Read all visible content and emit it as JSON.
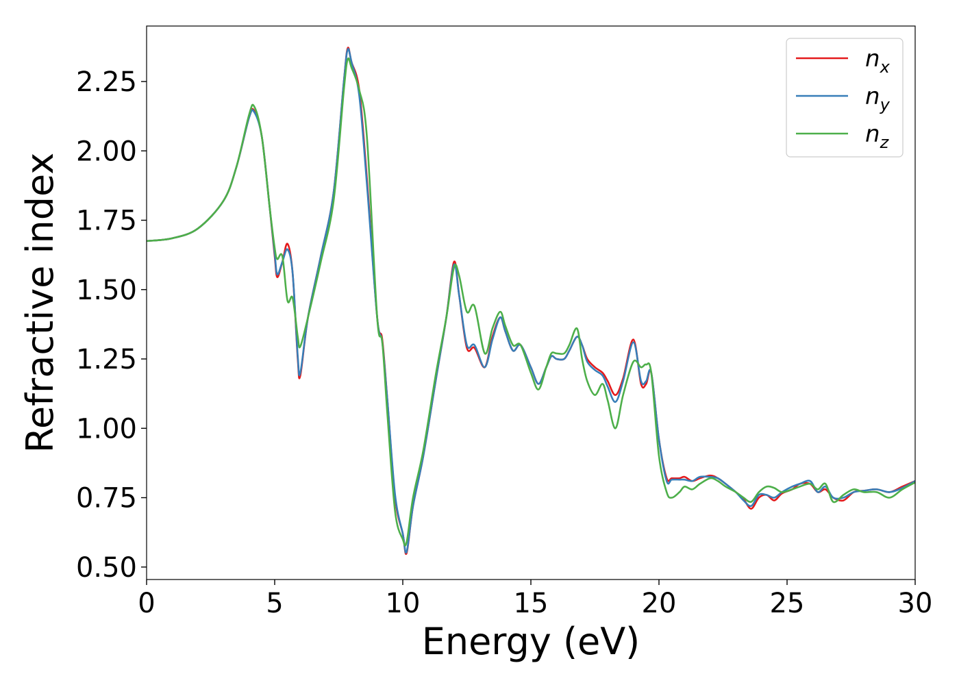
{
  "chart_data": {
    "type": "line",
    "xlabel": "Energy (eV)",
    "ylabel": "Refractive index",
    "xlim": [
      0,
      30
    ],
    "ylim": [
      0.455,
      2.45
    ],
    "xticks": [
      0,
      5,
      10,
      15,
      20,
      25,
      30
    ],
    "yticks": [
      0.5,
      0.75,
      1.0,
      1.25,
      1.5,
      1.75,
      2.0,
      2.25
    ],
    "xtick_labels": [
      "0",
      "5",
      "10",
      "15",
      "20",
      "25",
      "30"
    ],
    "ytick_labels": [
      "0.50",
      "0.75",
      "1.00",
      "1.25",
      "1.50",
      "1.75",
      "2.00",
      "2.25"
    ],
    "grid": false,
    "legend_position": "top-right",
    "series": [
      {
        "name": "n_x",
        "label_main": "n",
        "label_sub": "x",
        "color": "#e41a1c",
        "x": [
          0,
          1,
          2,
          3,
          3.5,
          4,
          4.2,
          4.5,
          4.8,
          5,
          5.1,
          5.3,
          5.5,
          5.7,
          5.9,
          6,
          6.3,
          6.8,
          7.3,
          7.7,
          7.85,
          8,
          8.3,
          8.6,
          9,
          9.2,
          9.4,
          9.7,
          10,
          10.15,
          10.4,
          10.8,
          11.3,
          11.7,
          12,
          12.2,
          12.5,
          12.8,
          13.2,
          13.5,
          13.8,
          14,
          14.3,
          14.6,
          15,
          15.3,
          15.6,
          15.8,
          16,
          16.3,
          16.5,
          16.8,
          17,
          17.2,
          17.5,
          17.8,
          18,
          18.3,
          18.6,
          19,
          19.3,
          19.5,
          19.7,
          20,
          20.3,
          20.5,
          20.8,
          21,
          21.3,
          21.6,
          22,
          22.3,
          22.6,
          23,
          23.3,
          23.6,
          23.9,
          24.2,
          24.5,
          24.8,
          25.2,
          25.5,
          25.9,
          26.2,
          26.5,
          26.8,
          27.2,
          27.6,
          28,
          28.5,
          29,
          29.5,
          30
        ],
        "y": [
          1.675,
          1.685,
          1.72,
          1.82,
          1.94,
          2.12,
          2.145,
          2.05,
          1.8,
          1.62,
          1.545,
          1.6,
          1.665,
          1.56,
          1.25,
          1.19,
          1.4,
          1.62,
          1.85,
          2.25,
          2.37,
          2.32,
          2.22,
          1.9,
          1.4,
          1.32,
          1.1,
          0.75,
          0.62,
          0.55,
          0.72,
          0.9,
          1.18,
          1.4,
          1.6,
          1.48,
          1.29,
          1.29,
          1.22,
          1.33,
          1.4,
          1.35,
          1.28,
          1.3,
          1.22,
          1.16,
          1.22,
          1.26,
          1.25,
          1.25,
          1.28,
          1.33,
          1.3,
          1.25,
          1.22,
          1.2,
          1.17,
          1.12,
          1.18,
          1.32,
          1.16,
          1.16,
          1.2,
          0.96,
          0.82,
          0.82,
          0.82,
          0.825,
          0.81,
          0.82,
          0.83,
          0.82,
          0.8,
          0.77,
          0.745,
          0.71,
          0.75,
          0.76,
          0.74,
          0.765,
          0.78,
          0.8,
          0.8,
          0.77,
          0.78,
          0.75,
          0.74,
          0.77,
          0.775,
          0.78,
          0.77,
          0.79,
          0.81
        ]
      },
      {
        "name": "n_y",
        "label_main": "n",
        "label_sub": "y",
        "color": "#377eb8",
        "x": [
          0,
          1,
          2,
          3,
          3.5,
          4,
          4.2,
          4.5,
          4.8,
          5,
          5.1,
          5.3,
          5.5,
          5.7,
          5.9,
          6,
          6.3,
          6.8,
          7.3,
          7.7,
          7.85,
          8,
          8.3,
          8.6,
          9,
          9.2,
          9.4,
          9.7,
          10,
          10.15,
          10.4,
          10.8,
          11.3,
          11.7,
          12,
          12.2,
          12.5,
          12.8,
          13.2,
          13.5,
          13.8,
          14,
          14.3,
          14.6,
          15,
          15.3,
          15.6,
          15.8,
          16,
          16.3,
          16.5,
          16.8,
          17,
          17.2,
          17.5,
          17.8,
          18,
          18.3,
          18.6,
          19,
          19.3,
          19.5,
          19.7,
          20,
          20.3,
          20.5,
          20.8,
          21,
          21.3,
          21.6,
          22,
          22.3,
          22.6,
          23,
          23.3,
          23.6,
          23.9,
          24.2,
          24.5,
          24.8,
          25.2,
          25.5,
          25.9,
          26.2,
          26.5,
          26.8,
          27.2,
          27.6,
          28,
          28.5,
          29,
          29.5,
          30
        ],
        "y": [
          1.675,
          1.685,
          1.72,
          1.82,
          1.94,
          2.12,
          2.14,
          2.05,
          1.8,
          1.63,
          1.555,
          1.6,
          1.645,
          1.56,
          1.26,
          1.2,
          1.4,
          1.62,
          1.85,
          2.25,
          2.365,
          2.32,
          2.2,
          1.88,
          1.4,
          1.31,
          1.1,
          0.76,
          0.62,
          0.555,
          0.72,
          0.9,
          1.18,
          1.4,
          1.59,
          1.48,
          1.3,
          1.3,
          1.22,
          1.32,
          1.4,
          1.35,
          1.28,
          1.3,
          1.22,
          1.16,
          1.22,
          1.26,
          1.25,
          1.25,
          1.28,
          1.33,
          1.3,
          1.24,
          1.21,
          1.19,
          1.15,
          1.095,
          1.17,
          1.31,
          1.17,
          1.17,
          1.2,
          0.96,
          0.81,
          0.815,
          0.815,
          0.815,
          0.81,
          0.825,
          0.825,
          0.82,
          0.8,
          0.77,
          0.74,
          0.72,
          0.76,
          0.76,
          0.75,
          0.77,
          0.79,
          0.8,
          0.81,
          0.77,
          0.79,
          0.75,
          0.75,
          0.77,
          0.775,
          0.78,
          0.77,
          0.785,
          0.81
        ]
      },
      {
        "name": "n_z",
        "label_main": "n",
        "label_sub": "z",
        "color": "#4daf4a",
        "x": [
          0,
          1,
          2,
          3,
          3.5,
          4,
          4.2,
          4.5,
          4.8,
          5,
          5.1,
          5.3,
          5.5,
          5.7,
          5.9,
          6,
          6.3,
          6.8,
          7.3,
          7.7,
          7.85,
          8,
          8.3,
          8.6,
          9,
          9.2,
          9.4,
          9.7,
          10,
          10.15,
          10.4,
          10.8,
          11.3,
          11.7,
          12,
          12.2,
          12.5,
          12.8,
          13.2,
          13.5,
          13.8,
          14,
          14.3,
          14.6,
          15,
          15.3,
          15.6,
          15.8,
          16,
          16.3,
          16.5,
          16.8,
          17,
          17.2,
          17.5,
          17.8,
          18,
          18.3,
          18.6,
          19,
          19.3,
          19.5,
          19.7,
          20,
          20.3,
          20.5,
          20.8,
          21,
          21.3,
          21.6,
          22,
          22.3,
          22.6,
          23,
          23.3,
          23.6,
          23.9,
          24.2,
          24.5,
          24.8,
          25.2,
          25.5,
          25.9,
          26.2,
          26.5,
          26.8,
          27.2,
          27.6,
          28,
          28.5,
          29,
          29.5,
          30
        ],
        "y": [
          1.675,
          1.685,
          1.72,
          1.82,
          1.94,
          2.13,
          2.16,
          2.05,
          1.8,
          1.65,
          1.61,
          1.62,
          1.46,
          1.47,
          1.33,
          1.295,
          1.4,
          1.6,
          1.82,
          2.22,
          2.33,
          2.3,
          2.22,
          2.05,
          1.4,
          1.31,
          1.05,
          0.7,
          0.6,
          0.59,
          0.75,
          0.92,
          1.2,
          1.4,
          1.58,
          1.55,
          1.42,
          1.44,
          1.27,
          1.36,
          1.42,
          1.37,
          1.3,
          1.3,
          1.2,
          1.14,
          1.22,
          1.27,
          1.27,
          1.27,
          1.3,
          1.36,
          1.25,
          1.17,
          1.12,
          1.16,
          1.1,
          1.0,
          1.12,
          1.24,
          1.22,
          1.23,
          1.2,
          0.9,
          0.77,
          0.75,
          0.77,
          0.79,
          0.78,
          0.8,
          0.82,
          0.81,
          0.79,
          0.77,
          0.75,
          0.735,
          0.77,
          0.79,
          0.785,
          0.77,
          0.78,
          0.79,
          0.8,
          0.78,
          0.8,
          0.735,
          0.76,
          0.78,
          0.77,
          0.77,
          0.75,
          0.78,
          0.805
        ]
      }
    ]
  }
}
